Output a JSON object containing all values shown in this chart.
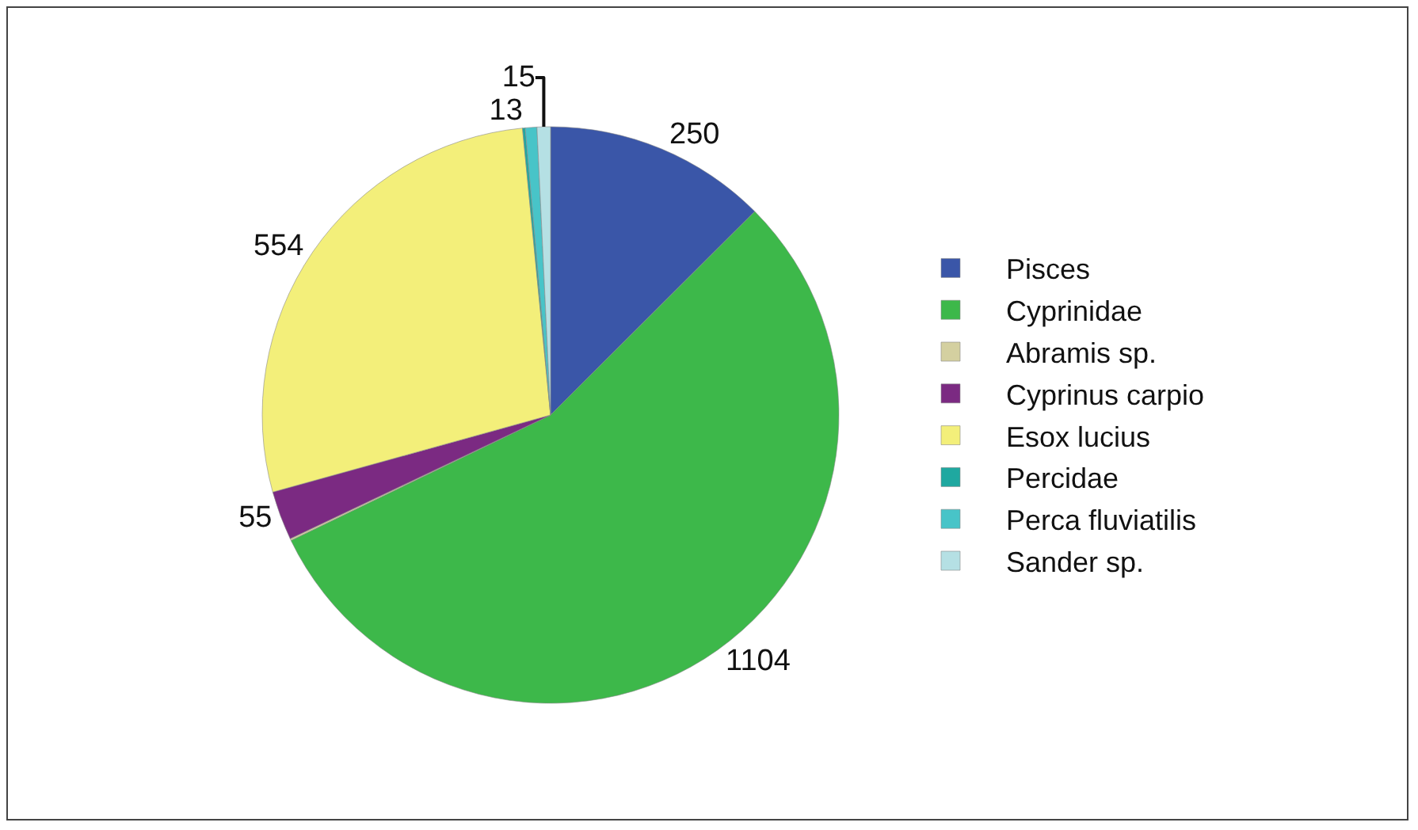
{
  "chart_data": {
    "type": "pie",
    "categories": [
      "Pisces",
      "Cyprinidae",
      "Abramis sp.",
      "Cyprinus carpio",
      "Esox lucius",
      "Percidae",
      "Perca fluviatilis",
      "Sander sp."
    ],
    "values": [
      250,
      1104,
      2,
      55,
      554,
      3,
      13,
      15
    ],
    "colors": [
      "#3a56a8",
      "#3db84a",
      "#d4d0a0",
      "#7b2a82",
      "#f3ef7a",
      "#1fa8a0",
      "#48c4c8",
      "#b5e0e4"
    ],
    "value_labels": [
      "250",
      "1104",
      null,
      "55",
      "554",
      null,
      "13",
      "15"
    ],
    "legend": "right"
  }
}
